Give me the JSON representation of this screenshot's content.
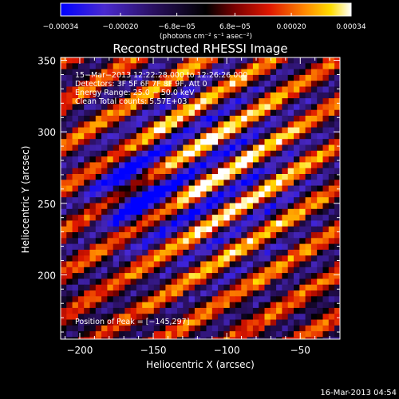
{
  "figure": {
    "title": "Reconstructed RHESSI Image",
    "xlabel": "Heliocentric X (arcsec)",
    "ylabel": "Heliocentric Y (arcsec)",
    "timestamp": "16-Mar-2013 04:54"
  },
  "colorbar": {
    "tick_labels": [
      "−0.00034",
      "−0.00020",
      "−6.8e−05",
      "6.8e−05",
      "0.00020",
      "0.00034"
    ],
    "tick_values": [
      -0.00034,
      -0.0002,
      -6.8e-05,
      6.8e-05,
      0.0002,
      0.00034
    ],
    "range": [
      -0.00034,
      0.00034
    ],
    "unit_label": "(photons cm⁻² s⁻¹ asec⁻²)"
  },
  "axes": {
    "xlim": [
      -213,
      -23
    ],
    "ylim": [
      155,
      352
    ],
    "xticks": [
      -200,
      -150,
      -100,
      -50
    ],
    "yticks": [
      200,
      250,
      300,
      350
    ],
    "xtick_labels": [
      "−200",
      "−150",
      "−100",
      "−50"
    ],
    "ytick_labels": [
      "200",
      "250",
      "300",
      "350"
    ]
  },
  "annotations": {
    "time_range": "15−Mar−2013 12:22:28.000 to 12:26:26.000",
    "detectors": "Detectors: 3F 5F 6F 7F 8F 9F, Att 0",
    "energy_range": "Energy Range: 25.0 − 50.0 keV",
    "clean": "Clean     Total counts: 5.57E+03",
    "peak": "Position of Peak = [−145,297]"
  },
  "colors": {
    "background": "#000000",
    "axes": "#ffffff",
    "colormap": [
      "#0000ff",
      "#5a22b4",
      "#1e0a46",
      "#000000",
      "#7a0000",
      "#e01800",
      "#ff7a00",
      "#ffd200",
      "#ffffff"
    ]
  }
}
